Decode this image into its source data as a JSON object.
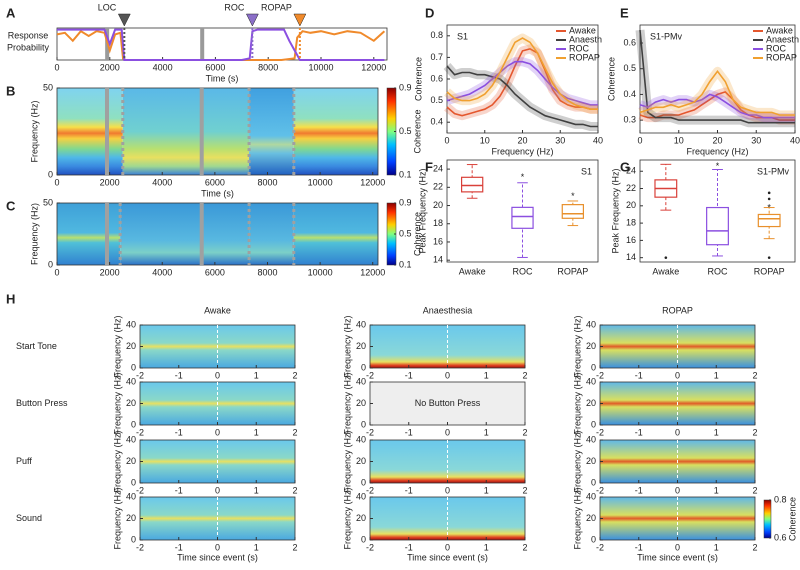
{
  "chart_data": [
    {
      "panel": "A",
      "type": "line",
      "y_label": [
        "Response",
        "Probability"
      ],
      "x_label": "Time (s)",
      "xlim": [
        0,
        12500
      ],
      "xticks": [
        0,
        2000,
        4000,
        6000,
        8000,
        10000,
        12000
      ],
      "ylim": [
        0,
        1
      ],
      "series": [
        {
          "color": "#f08a2b",
          "x": [
            0,
            300,
            600,
            900,
            1200,
            1500,
            1800,
            2000,
            2200,
            2400,
            2500,
            2600,
            3000,
            5000,
            7000,
            8500,
            9000,
            9100,
            9300,
            9600,
            10000,
            10500,
            11000,
            11500,
            12000,
            12400
          ],
          "values": [
            0.8,
            0.85,
            0.6,
            0.9,
            0.75,
            0.9,
            0.85,
            0.3,
            0.8,
            0.85,
            0.05,
            0,
            0,
            0,
            0,
            0,
            0.05,
            0.7,
            0.9,
            0.85,
            0.9,
            0.8,
            0.9,
            0.85,
            0.6,
            0.9
          ]
        },
        {
          "color": "#8b4fe0",
          "x": [
            0,
            1800,
            2000,
            2200,
            2450,
            2550,
            3000,
            7000,
            7300,
            7400,
            7600,
            8000,
            8600,
            8800,
            9000,
            9200,
            12400
          ],
          "values": [
            0.95,
            0.95,
            0.5,
            0.95,
            0.95,
            0,
            0,
            0,
            0.05,
            0.9,
            0.95,
            0.95,
            0.95,
            0.6,
            0.3,
            0,
            0
          ]
        }
      ],
      "events": [
        1900,
        5500
      ],
      "markers": [
        {
          "label": "LOC",
          "x": 2550,
          "color": "#555555"
        },
        {
          "label": "ROC",
          "x": 7400,
          "color": "#8b6fc8"
        },
        {
          "label": "ROPAP",
          "x": 9200,
          "color": "#f08a2b"
        }
      ]
    },
    {
      "panel": "B",
      "type": "heatmap",
      "y_label": "Frequency (Hz)",
      "x_label": "Time (s)",
      "xlim": [
        0,
        12200
      ],
      "xticks": [
        0,
        2000,
        4000,
        6000,
        8000,
        10000,
        12000
      ],
      "ylim": [
        0,
        50
      ],
      "yticks": [
        0,
        50
      ],
      "events": [
        1900,
        5500
      ],
      "dashed_events": [
        2500,
        7300,
        9000
      ],
      "colorbar": {
        "label": "Coherence",
        "lim": [
          0.1,
          0.9
        ],
        "ticks": [
          0.1,
          0.5,
          0.9
        ]
      }
    },
    {
      "panel": "C",
      "type": "heatmap",
      "y_label": "Frequency (Hz)",
      "xlim": [
        0,
        12200
      ],
      "xticks": [
        0,
        2000,
        4000,
        6000,
        8000,
        10000,
        12000
      ],
      "ylim": [
        0,
        50
      ],
      "yticks": [
        0,
        50
      ],
      "events": [
        1900,
        5500
      ],
      "dashed_events": [
        2400,
        7300,
        9000
      ],
      "colorbar": {
        "label": "Coherence",
        "lim": [
          0.1,
          0.9
        ],
        "ticks": [
          0.1,
          0.5,
          0.9
        ]
      }
    },
    {
      "panel": "D",
      "type": "line",
      "label": "S1",
      "y_label": "Coherence",
      "x_label": "Frequency (Hz)",
      "xlim": [
        0,
        40
      ],
      "xticks": [
        0,
        10,
        20,
        30,
        40
      ],
      "ylim": [
        0.35,
        0.85
      ],
      "yticks": [
        0.4,
        0.5,
        0.6,
        0.7,
        0.8
      ],
      "x": [
        0,
        2,
        4,
        6,
        8,
        10,
        12,
        14,
        16,
        18,
        20,
        22,
        24,
        26,
        28,
        30,
        32,
        34,
        36,
        38,
        40
      ],
      "series": [
        {
          "name": "Awake",
          "color": "#e4572e",
          "values": [
            0.47,
            0.44,
            0.43,
            0.44,
            0.45,
            0.46,
            0.48,
            0.52,
            0.58,
            0.66,
            0.73,
            0.74,
            0.72,
            0.64,
            0.55,
            0.5,
            0.48,
            0.47,
            0.47,
            0.46,
            0.46
          ]
        },
        {
          "name": "Anaesth",
          "color": "#404040",
          "values": [
            0.66,
            0.62,
            0.63,
            0.63,
            0.62,
            0.62,
            0.61,
            0.6,
            0.57,
            0.53,
            0.5,
            0.47,
            0.45,
            0.43,
            0.42,
            0.41,
            0.4,
            0.39,
            0.39,
            0.38,
            0.38
          ]
        },
        {
          "name": "ROC",
          "color": "#8b4fe0",
          "values": [
            0.5,
            0.51,
            0.52,
            0.53,
            0.55,
            0.57,
            0.6,
            0.63,
            0.66,
            0.68,
            0.68,
            0.67,
            0.64,
            0.6,
            0.56,
            0.53,
            0.51,
            0.5,
            0.49,
            0.48,
            0.48
          ]
        },
        {
          "name": "ROPAP",
          "color": "#f0a030",
          "values": [
            0.54,
            0.51,
            0.5,
            0.5,
            0.51,
            0.53,
            0.57,
            0.63,
            0.7,
            0.77,
            0.79,
            0.77,
            0.72,
            0.65,
            0.58,
            0.53,
            0.5,
            0.48,
            0.47,
            0.46,
            0.46
          ]
        }
      ]
    },
    {
      "panel": "E",
      "type": "line",
      "label": "S1-PMv",
      "y_label": "Coherence",
      "x_label": "Frequency (Hz)",
      "xlim": [
        0,
        40
      ],
      "xticks": [
        0,
        10,
        20,
        30,
        40
      ],
      "ylim": [
        0.25,
        0.67
      ],
      "yticks": [
        0.3,
        0.4,
        0.5,
        0.6
      ],
      "x": [
        0,
        2,
        4,
        6,
        8,
        10,
        12,
        14,
        16,
        18,
        20,
        22,
        24,
        26,
        28,
        30,
        32,
        34,
        36,
        38,
        40
      ],
      "series": [
        {
          "name": "Awake",
          "color": "#e4572e",
          "values": [
            0.32,
            0.31,
            0.31,
            0.32,
            0.32,
            0.32,
            0.33,
            0.34,
            0.36,
            0.38,
            0.4,
            0.41,
            0.38,
            0.34,
            0.32,
            0.31,
            0.31,
            0.31,
            0.3,
            0.3,
            0.3
          ]
        },
        {
          "name": "Anaesth",
          "color": "#404040",
          "values": [
            0.65,
            0.33,
            0.31,
            0.31,
            0.31,
            0.3,
            0.3,
            0.3,
            0.3,
            0.3,
            0.3,
            0.3,
            0.3,
            0.3,
            0.29,
            0.29,
            0.29,
            0.29,
            0.29,
            0.29,
            0.29
          ]
        },
        {
          "name": "ROC",
          "color": "#8b4fe0",
          "values": [
            0.36,
            0.35,
            0.37,
            0.38,
            0.37,
            0.38,
            0.38,
            0.37,
            0.38,
            0.4,
            0.39,
            0.37,
            0.35,
            0.33,
            0.32,
            0.32,
            0.31,
            0.31,
            0.31,
            0.31,
            0.31
          ]
        },
        {
          "name": "ROPAP",
          "color": "#f0a030",
          "values": [
            0.33,
            0.34,
            0.35,
            0.35,
            0.36,
            0.35,
            0.36,
            0.37,
            0.4,
            0.45,
            0.49,
            0.45,
            0.38,
            0.35,
            0.34,
            0.33,
            0.33,
            0.33,
            0.32,
            0.32,
            0.32
          ]
        }
      ]
    },
    {
      "panel": "F",
      "type": "box",
      "label": "S1",
      "y_label": "Peak Frequency (Hz)",
      "categories": [
        "Awake",
        "ROC",
        "ROPAP"
      ],
      "colors": [
        "#d9413a",
        "#8b4fe0",
        "#e8902c"
      ],
      "ylim": [
        13.8,
        25
      ],
      "yticks": [
        14,
        16,
        18,
        20,
        22,
        24
      ],
      "boxes": [
        {
          "min": 20.8,
          "q1": 21.5,
          "median": 22.2,
          "q3": 23.1,
          "max": 24.5
        },
        {
          "min": 14.3,
          "q1": 17.5,
          "median": 18.8,
          "q3": 19.8,
          "max": 22.5
        },
        {
          "min": 17.8,
          "q1": 18.6,
          "median": 19.1,
          "q3": 20.1,
          "max": 20.5
        }
      ],
      "annotations": [
        {
          "text": "*",
          "x": "ROC",
          "y": 23.4
        },
        {
          "text": "*",
          "x": "ROPAP",
          "y": 21.3
        }
      ]
    },
    {
      "panel": "G",
      "type": "box",
      "label": "S1-PMv",
      "y_label": "Peak Frequency (Hz)",
      "categories": [
        "Awake",
        "ROC",
        "ROPAP"
      ],
      "colors": [
        "#d9413a",
        "#8b4fe0",
        "#e8902c"
      ],
      "ylim": [
        13.5,
        25.3
      ],
      "yticks": [
        14,
        16,
        18,
        20,
        22,
        24
      ],
      "boxes": [
        {
          "min": 19.5,
          "q1": 21,
          "median": 22,
          "q3": 23,
          "max": 24.8,
          "outliers": [
            14
          ]
        },
        {
          "min": 14.2,
          "q1": 15.5,
          "median": 17.1,
          "q3": 19.8,
          "max": 24.2
        },
        {
          "min": 16.2,
          "q1": 17.6,
          "median": 18.5,
          "q3": 19,
          "max": 19.8,
          "outliers": [
            21.5,
            20.8,
            14
          ]
        }
      ],
      "annotations": [
        {
          "text": "*",
          "x": "ROC",
          "y": 24.9
        },
        {
          "text": "*",
          "x": "ROPAP",
          "y": 20.1
        }
      ]
    },
    {
      "panel": "H",
      "type": "heatmap-grid",
      "columns": [
        "Awake",
        "Anaesthesia",
        "ROPAP"
      ],
      "rows": [
        "Start Tone",
        "Button Press",
        "Puff",
        "Sound"
      ],
      "y_label": "Frequency (Hz)",
      "x_label": "Time since event (s)",
      "xlim": [
        -2,
        2
      ],
      "xticks": [
        -2,
        -1,
        0,
        1,
        2
      ],
      "ylim": [
        0,
        40
      ],
      "yticks": [
        0,
        20,
        40
      ],
      "empty_note": "No Button Press",
      "colorbar": {
        "label": "Coherence",
        "lim": [
          0.6,
          0.8
        ],
        "ticks": [
          0.6,
          0.8
        ]
      }
    }
  ]
}
